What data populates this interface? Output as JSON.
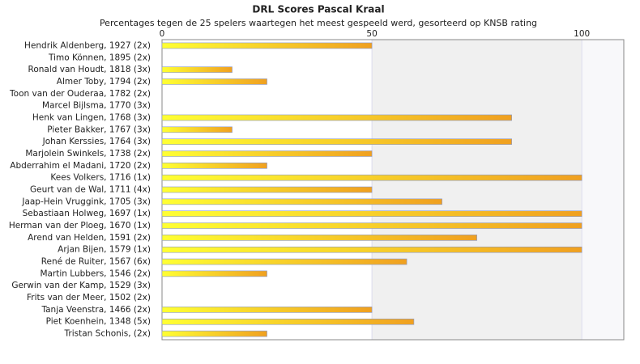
{
  "chart_data": {
    "type": "bar",
    "orientation": "horizontal",
    "title": "DRL Scores Pascal Kraal",
    "subtitle": "Percentages tegen de 25 spelers waartegen het meest gespeeld werd, gesorteerd op KNSB rating",
    "categories": [
      "Hendrik Aldenberg, 1927 (2x)",
      "Timo Können, 1895 (2x)",
      "Ronald van Houdt, 1818 (3x)",
      "Almer Toby, 1794 (2x)",
      "Toon van der Ouderaa, 1782 (2x)",
      "Marcel Bijlsma, 1770 (3x)",
      "Henk van Lingen, 1768 (3x)",
      "Pieter Bakker, 1767 (3x)",
      "Johan Kerssies, 1764 (3x)",
      "Marjolein Swinkels, 1738 (2x)",
      "Abderrahim el Madani, 1720 (2x)",
      "Kees Volkers, 1716 (1x)",
      "Geurt van de Wal, 1711 (4x)",
      "Jaap-Hein Vruggink, 1705 (3x)",
      "Sebastiaan Holweg, 1697 (1x)",
      "Herman van der Ploeg, 1670 (1x)",
      "Arend van Helden, 1591 (2x)",
      "Arjan Bijen, 1579 (1x)",
      "René de Ruiter, 1567 (6x)",
      "Martin Lubbers, 1546 (2x)",
      "Gerwin van der Kamp, 1529 (3x)",
      "Frits van der Meer, 1502 (2x)",
      "Tanja Veenstra, 1466 (2x)",
      "Piet Koenhein, 1348 (5x)",
      "Tristan Schonis,  (2x)"
    ],
    "values": [
      50,
      0,
      16.7,
      25,
      0,
      0,
      83.3,
      16.7,
      83.3,
      50,
      25,
      100,
      50,
      66.7,
      100,
      100,
      75,
      100,
      58.3,
      25,
      0,
      0,
      50,
      60,
      25
    ],
    "color": [
      "#ffff33",
      "#f0a020"
    ],
    "xlim": [
      0,
      110
    ],
    "xticks": [
      0,
      50,
      100
    ],
    "grid": true
  }
}
